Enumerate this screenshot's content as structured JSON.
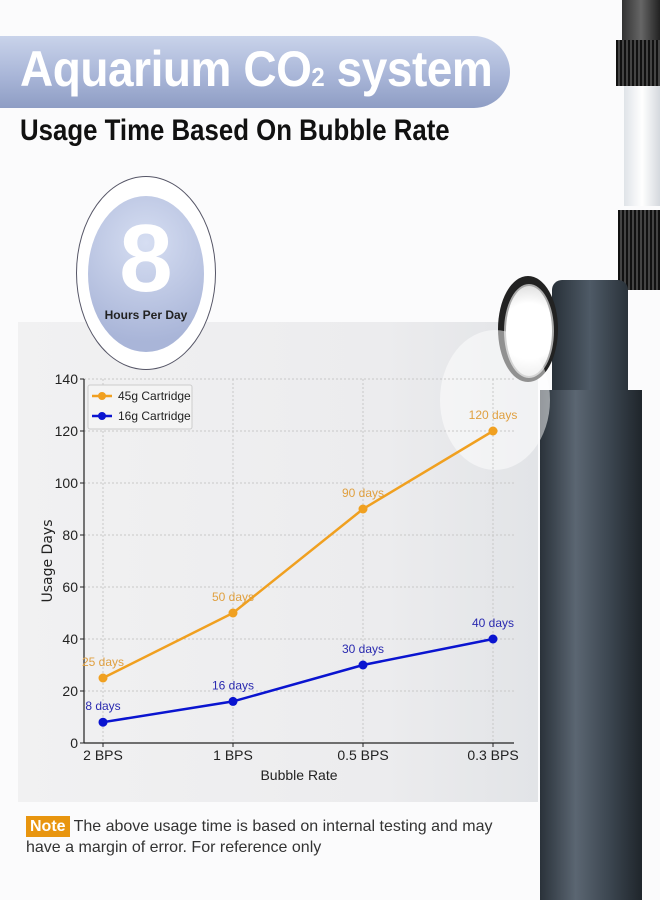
{
  "header": {
    "title_main": "Aquarium CO",
    "title_sub": "2",
    "title_end": " system",
    "subtitle": "Usage Time Based On Bubble Rate"
  },
  "badge": {
    "number": "8",
    "label": "Hours Per Day"
  },
  "note": {
    "tag": "Note",
    "text": "The above usage time is based on internal testing and may have a margin of error. For reference only"
  },
  "chart_data": {
    "type": "line",
    "xlabel": "Bubble Rate",
    "ylabel": "Usage Days",
    "categories": [
      "2 BPS",
      "1 BPS",
      "0.5 BPS",
      "0.3 BPS"
    ],
    "ylim": [
      0,
      140
    ],
    "yticks": [
      0,
      20,
      40,
      60,
      80,
      100,
      120,
      140
    ],
    "grid": true,
    "legend_position": "top-left",
    "series": [
      {
        "name": "45g Cartridge",
        "color": "#f0a020",
        "values": [
          25,
          50,
          90,
          120
        ],
        "labels": [
          "25 days",
          "50 days",
          "90 days",
          "120 days"
        ]
      },
      {
        "name": "16g Cartridge",
        "color": "#0a14d0",
        "values": [
          8,
          16,
          30,
          40
        ],
        "labels": [
          "8 days",
          "16 days",
          "30 days",
          "40 days"
        ]
      }
    ]
  }
}
